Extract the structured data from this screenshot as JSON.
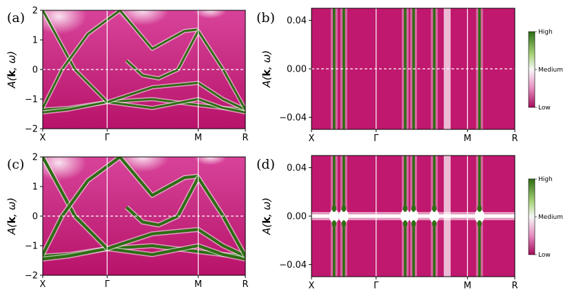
{
  "colors": {
    "low": "#b0125f",
    "mid": "#ffffff",
    "high": "#2e6e14",
    "fermi_line": "#ffffff"
  },
  "colorbar": {
    "high": "High",
    "medium": "Medium",
    "low": "Low"
  },
  "chart_data": [
    {
      "type": "heatmap",
      "panel_label": "(a)",
      "ylabel_pre": "A(",
      "ylabel_bold": "k",
      "ylabel_post": ", ω)",
      "x_ticks": [
        "X",
        "Γ",
        "M",
        "R"
      ],
      "x_tick_pos": [
        0,
        1,
        2.414,
        3.146
      ],
      "ylim": [
        -2,
        2
      ],
      "y_ticks": [
        2,
        1,
        0,
        -1,
        -2
      ],
      "y_tick_labels": [
        "2",
        "1",
        "0",
        "−1",
        "−2"
      ],
      "bands": [
        {
          "x": [
            0,
            0.4,
            1,
            1.7,
            2.414,
            2.8,
            3.146
          ],
          "y": [
            -1.35,
            -1.3,
            -1.1,
            -1.0,
            -1.2,
            -1.3,
            -1.35
          ]
        },
        {
          "x": [
            0,
            0.4,
            1,
            1.7,
            2.414,
            2.8,
            3.146
          ],
          "y": [
            -1.45,
            -1.35,
            -1.1,
            -1.3,
            -1.0,
            -1.3,
            -1.45
          ]
        },
        {
          "x": [
            0,
            0.5,
            1,
            1.7,
            2.414,
            2.8,
            3.146
          ],
          "y": [
            2.0,
            0.0,
            -1.1,
            -0.6,
            -0.45,
            -1.0,
            -1.35
          ]
        },
        {
          "x": [
            0,
            0.3,
            0.7,
            1.2,
            1.7,
            2.2,
            2.414
          ],
          "y": [
            -1.3,
            0.0,
            1.2,
            2.0,
            0.7,
            1.3,
            1.35
          ]
        },
        {
          "x": [
            1.3,
            1.55,
            1.8,
            2.1,
            2.414,
            2.8,
            3.146
          ],
          "y": [
            0.3,
            -0.2,
            -0.3,
            0.0,
            1.3,
            0.0,
            -1.35
          ]
        }
      ]
    },
    {
      "type": "heatmap",
      "panel_label": "(b)",
      "ylabel_pre": "A(",
      "ylabel_bold": "k",
      "ylabel_post": ", ω)",
      "x_ticks": [
        "X",
        "Γ",
        "M",
        "R"
      ],
      "x_tick_pos": [
        0,
        1,
        2.414,
        3.146
      ],
      "ylim": [
        -0.05,
        0.05
      ],
      "y_ticks": [
        0.04,
        0.0,
        -0.04
      ],
      "y_tick_labels": [
        "0.04",
        "0.00",
        "−0.04"
      ],
      "crossings": [
        0.35,
        0.5,
        1.45,
        1.58,
        1.9,
        2.6
      ]
    },
    {
      "type": "heatmap",
      "panel_label": "(c)",
      "ylabel_pre": "A(",
      "ylabel_bold": "k",
      "ylabel_post": ", ω)",
      "x_ticks": [
        "X",
        "Γ",
        "M",
        "R"
      ],
      "x_tick_pos": [
        0,
        1,
        2.414,
        3.146
      ],
      "ylim": [
        -2,
        2
      ],
      "y_ticks": [
        2,
        1,
        0,
        -1,
        -2
      ],
      "y_tick_labels": [
        "2",
        "1",
        "0",
        "−1",
        "−2"
      ],
      "bands": [
        {
          "x": [
            0,
            0.4,
            1,
            1.7,
            2.414,
            2.8,
            3.146
          ],
          "y": [
            -1.35,
            -1.3,
            -1.1,
            -1.0,
            -1.2,
            -1.3,
            -1.35
          ]
        },
        {
          "x": [
            0,
            0.4,
            1,
            1.7,
            2.414,
            2.8,
            3.146
          ],
          "y": [
            -1.45,
            -1.35,
            -1.1,
            -1.3,
            -1.0,
            -1.3,
            -1.45
          ]
        },
        {
          "x": [
            0,
            0.5,
            1,
            1.7,
            2.414,
            2.8,
            3.146
          ],
          "y": [
            2.0,
            0.0,
            -1.1,
            -0.6,
            -0.45,
            -1.0,
            -1.35
          ]
        },
        {
          "x": [
            0,
            0.3,
            0.7,
            1.2,
            1.7,
            2.2,
            2.414
          ],
          "y": [
            -1.3,
            0.0,
            1.2,
            2.0,
            0.7,
            1.3,
            1.35
          ]
        },
        {
          "x": [
            1.3,
            1.55,
            1.8,
            2.1,
            2.414,
            2.8,
            3.146
          ],
          "y": [
            0.3,
            -0.2,
            -0.3,
            0.0,
            1.3,
            0.0,
            -1.35
          ]
        }
      ]
    },
    {
      "type": "heatmap",
      "panel_label": "(d)",
      "ylabel_pre": "A(",
      "ylabel_bold": "k",
      "ylabel_post": ", ω)",
      "x_ticks": [
        "X",
        "Γ",
        "M",
        "R"
      ],
      "x_tick_pos": [
        0,
        1,
        2.414,
        3.146
      ],
      "ylim": [
        -0.05,
        0.05
      ],
      "y_ticks": [
        0.04,
        0.0,
        -0.04
      ],
      "y_tick_labels": [
        "0.04",
        "0.00",
        "−0.04"
      ],
      "crossings": [
        0.35,
        0.5,
        1.45,
        1.58,
        1.9,
        2.6
      ]
    }
  ]
}
